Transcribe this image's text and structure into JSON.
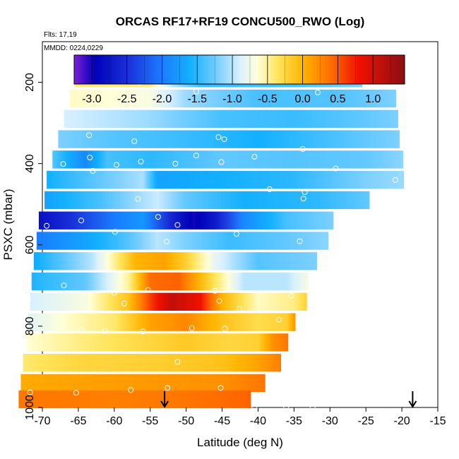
{
  "chart_data": {
    "type": "heatmap",
    "title": "ORCAS RF17+RF19 CONCU500_RWO (Log)",
    "flights_label": "Flts: 17,19",
    "date_label": "MMDD: 0224,0229",
    "xlabel": "Latitude (deg N)",
    "ylabel": "PSXC (mbar)",
    "xlim": [
      -70,
      -15
    ],
    "ylim": [
      1000,
      100
    ],
    "x_ticks": [
      -70,
      -65,
      -60,
      -55,
      -50,
      -45,
      -40,
      -35,
      -30,
      -25,
      -20,
      -15
    ],
    "x_tick_labels": [
      "-70",
      "-65",
      "-60",
      "-55",
      "-50",
      "-45",
      "-40",
      "-35",
      "-30",
      "-25",
      "-20",
      "-15"
    ],
    "y_ticks": [
      200,
      400,
      600,
      800,
      1000
    ],
    "y_tick_labels": [
      "200",
      "400",
      "600",
      "800",
      "1000"
    ],
    "colorbar": {
      "range": [
        -3.25,
        1.45
      ],
      "ticks": [
        -3.0,
        -2.5,
        -2.0,
        -1.5,
        -1.0,
        -0.5,
        0.0,
        0.5,
        1.0
      ],
      "tick_labels": [
        "-3.0",
        "-2.5",
        "-2.0",
        "-1.5",
        "-1.0",
        "-0.5",
        "0.0",
        "0.5",
        "1.0"
      ]
    },
    "layers": [
      {
        "p": 190,
        "x": [
          -65.5,
          -25.5
        ],
        "anchors": [
          [
            -65.5,
            -0.45
          ],
          [
            -55,
            -0.45
          ],
          [
            -52,
            -1.0
          ],
          [
            -48,
            -1.45
          ],
          [
            -35,
            -1.4
          ],
          [
            -25.5,
            -1.2
          ]
        ]
      },
      {
        "p": 240,
        "x": [
          -66.2,
          -20.8
        ],
        "anchors": [
          [
            -66.2,
            -0.6
          ],
          [
            -55,
            -0.7
          ],
          [
            -50,
            -1.1
          ],
          [
            -40,
            -1.4
          ],
          [
            -28,
            -1.35
          ],
          [
            -20.8,
            -1.2
          ]
        ]
      },
      {
        "p": 290,
        "x": [
          -67,
          -20.5
        ],
        "anchors": [
          [
            -67,
            -0.9
          ],
          [
            -55,
            -1.1
          ],
          [
            -45,
            -1.4
          ],
          [
            -35,
            -1.45
          ],
          [
            -25,
            -1.3
          ],
          [
            -20.5,
            -1.2
          ]
        ]
      },
      {
        "p": 340,
        "x": [
          -67.8,
          -20.3
        ],
        "anchors": [
          [
            -67.8,
            -1.2
          ],
          [
            -60,
            -1.35
          ],
          [
            -50,
            -1.45
          ],
          [
            -40,
            -1.6
          ],
          [
            -30,
            -1.4
          ],
          [
            -20.3,
            -1.2
          ]
        ]
      },
      {
        "p": 390,
        "x": [
          -68.6,
          -19.8
        ],
        "anchors": [
          [
            -68.6,
            -1.35
          ],
          [
            -64,
            -1.9
          ],
          [
            -61,
            -1.4
          ],
          [
            -55,
            -1.5
          ],
          [
            -45,
            -1.3
          ],
          [
            -35,
            -1.35
          ],
          [
            -25,
            -1.3
          ],
          [
            -19.8,
            -1.15
          ]
        ]
      },
      {
        "p": 440,
        "x": [
          -69.4,
          -19.7
        ],
        "anchors": [
          [
            -69.4,
            -1.6
          ],
          [
            -62,
            -1.3
          ],
          [
            -56,
            -1.05
          ],
          [
            -54,
            -1.7
          ],
          [
            -45,
            -1.6
          ],
          [
            -35,
            -1.5
          ],
          [
            -25,
            -1.2
          ],
          [
            -19.7,
            -1.1
          ]
        ]
      },
      {
        "p": 490,
        "x": [
          -69.7,
          -24.5
        ],
        "anchors": [
          [
            -69.7,
            -1.7
          ],
          [
            -62,
            -1.4
          ],
          [
            -56,
            -1.05
          ],
          [
            -54,
            -0.95
          ],
          [
            -50,
            -1.3
          ],
          [
            -42,
            -1.6
          ],
          [
            -32,
            -1.5
          ],
          [
            -24.5,
            -1.3
          ]
        ]
      },
      {
        "p": 540,
        "x": [
          -70.5,
          -29.5
        ],
        "anchors": [
          [
            -70.5,
            -2.8
          ],
          [
            -66,
            -2.5
          ],
          [
            -60,
            -2.0
          ],
          [
            -56,
            -1.8
          ],
          [
            -52,
            -2.6
          ],
          [
            -49,
            -3.0
          ],
          [
            -46,
            -2.7
          ],
          [
            -42,
            -1.9
          ],
          [
            -36,
            -1.4
          ],
          [
            -29.5,
            -1.2
          ]
        ]
      },
      {
        "p": 590,
        "x": [
          -70.8,
          -30.2
        ],
        "anchors": [
          [
            -70.8,
            -2.0
          ],
          [
            -64,
            -1.7
          ],
          [
            -58,
            -1.35
          ],
          [
            -54,
            -1.0
          ],
          [
            -50,
            -1.2
          ],
          [
            -44,
            -1.45
          ],
          [
            -36,
            -1.3
          ],
          [
            -30.2,
            -1.15
          ]
        ]
      },
      {
        "p": 640,
        "x": [
          -71.2,
          -31.8
        ],
        "anchors": [
          [
            -71.2,
            -1.65
          ],
          [
            -63,
            -1.0
          ],
          [
            -57,
            0.0
          ],
          [
            -53,
            0.1
          ],
          [
            -50,
            -0.2
          ],
          [
            -46,
            -0.8
          ],
          [
            -40,
            -1.35
          ],
          [
            -31.8,
            -1.2
          ]
        ]
      },
      {
        "p": 690,
        "x": [
          -71.5,
          -33.0
        ],
        "anchors": [
          [
            -71.5,
            -1.55
          ],
          [
            -64,
            -1.3
          ],
          [
            -58,
            -0.5
          ],
          [
            -55,
            0.4
          ],
          [
            -51,
            0.45
          ],
          [
            -47,
            -0.2
          ],
          [
            -42,
            -1.0
          ],
          [
            -36,
            -1.0
          ],
          [
            -33,
            -0.7
          ]
        ]
      },
      {
        "p": 740,
        "x": [
          -71.7,
          -33.2
        ],
        "anchors": [
          [
            -71.7,
            -0.9
          ],
          [
            -64,
            -0.7
          ],
          [
            -58,
            -0.1
          ],
          [
            -55,
            0.6
          ],
          [
            -52,
            1.1
          ],
          [
            -48,
            0.8
          ],
          [
            -45,
            0.0
          ],
          [
            -40,
            -0.6
          ],
          [
            -35,
            -0.45
          ],
          [
            -33.2,
            -0.2
          ]
        ]
      },
      {
        "p": 790,
        "x": [
          -72.0,
          -34.8
        ],
        "anchors": [
          [
            -72.0,
            -0.85
          ],
          [
            -66,
            -0.6
          ],
          [
            -60,
            -0.4
          ],
          [
            -55,
            0.1
          ],
          [
            -50,
            0.25
          ],
          [
            -45,
            -0.1
          ],
          [
            -40,
            -0.3
          ],
          [
            -36,
            -0.2
          ],
          [
            -34.8,
            0.2
          ]
        ]
      },
      {
        "p": 840,
        "x": [
          -72.3,
          -35.8
        ],
        "anchors": [
          [
            -72.3,
            -0.65
          ],
          [
            -65,
            -0.45
          ],
          [
            -58,
            -0.3
          ],
          [
            -50,
            -0.15
          ],
          [
            -44,
            -0.25
          ],
          [
            -40,
            -0.2
          ],
          [
            -38,
            0.2
          ],
          [
            -35.8,
            0.35
          ]
        ]
      },
      {
        "p": 890,
        "x": [
          -72.7,
          -36.8
        ],
        "anchors": [
          [
            -72.7,
            -0.4
          ],
          [
            -65,
            -0.25
          ],
          [
            -55,
            -0.2
          ],
          [
            -45,
            -0.1
          ],
          [
            -40,
            0.1
          ],
          [
            -36.8,
            0.3
          ]
        ]
      },
      {
        "p": 940,
        "x": [
          -73.0,
          -39.0
        ],
        "anchors": [
          [
            -73.0,
            0.05
          ],
          [
            -65,
            0.1
          ],
          [
            -55,
            0.15
          ],
          [
            -45,
            0.2
          ],
          [
            -39,
            0.35
          ]
        ]
      },
      {
        "p": 980,
        "x": [
          -73.3,
          -41.0
        ],
        "anchors": [
          [
            -73.3,
            0.35
          ],
          [
            -60,
            0.3
          ],
          [
            -50,
            0.35
          ],
          [
            -41,
            0.45
          ]
        ]
      }
    ],
    "markers": [
      [
        -60.2,
        178
      ],
      [
        -56.5,
        200
      ],
      [
        -50.6,
        192
      ],
      [
        -40.2,
        187
      ],
      [
        -37.1,
        190
      ],
      [
        -31.7,
        225
      ],
      [
        -26.3,
        188
      ],
      [
        -48.6,
        223
      ],
      [
        -63.5,
        330
      ],
      [
        -57.2,
        345
      ],
      [
        -45.5,
        335
      ],
      [
        -44.7,
        340
      ],
      [
        -33.8,
        364
      ],
      [
        -63.4,
        385
      ],
      [
        -56.3,
        395
      ],
      [
        -48.6,
        380
      ],
      [
        -40.5,
        383
      ],
      [
        -29.2,
        412
      ],
      [
        -20.9,
        440
      ],
      [
        -67.1,
        401
      ],
      [
        -63.0,
        418
      ],
      [
        -59.7,
        403
      ],
      [
        -51.5,
        400
      ],
      [
        -45.1,
        396
      ],
      [
        -38.4,
        463
      ],
      [
        -33.5,
        470
      ],
      [
        -33.7,
        486
      ],
      [
        -56.7,
        487
      ],
      [
        -53.9,
        531
      ],
      [
        -69.4,
        553
      ],
      [
        -64.6,
        540
      ],
      [
        -59.9,
        568
      ],
      [
        -51.2,
        551
      ],
      [
        -43.0,
        573
      ],
      [
        -34.2,
        591
      ],
      [
        -52.7,
        592
      ],
      [
        -72.0,
        735
      ],
      [
        -67.0,
        700
      ],
      [
        -60.0,
        718
      ],
      [
        -55.3,
        711
      ],
      [
        -46.0,
        713
      ],
      [
        -45.4,
        738
      ],
      [
        -42.6,
        757
      ],
      [
        -35.4,
        725
      ],
      [
        -31.6,
        743
      ],
      [
        -58.6,
        744
      ],
      [
        -71.6,
        802
      ],
      [
        -64.6,
        809
      ],
      [
        -61.3,
        812
      ],
      [
        -56.0,
        813
      ],
      [
        -49.2,
        805
      ],
      [
        -44.6,
        806
      ],
      [
        -37.1,
        784
      ],
      [
        -33.6,
        781
      ],
      [
        -65.3,
        964
      ],
      [
        -57.7,
        957
      ],
      [
        -52.6,
        952
      ],
      [
        -45.2,
        952
      ],
      [
        -71.7,
        963
      ],
      [
        -40.5,
        1000
      ],
      [
        -36.1,
        1000
      ],
      [
        -32.4,
        1000
      ],
      [
        -51.2,
        888
      ]
    ],
    "arrows": [
      {
        "x": -53,
        "p": 975
      },
      {
        "x": -18.5,
        "p": 975
      }
    ]
  }
}
